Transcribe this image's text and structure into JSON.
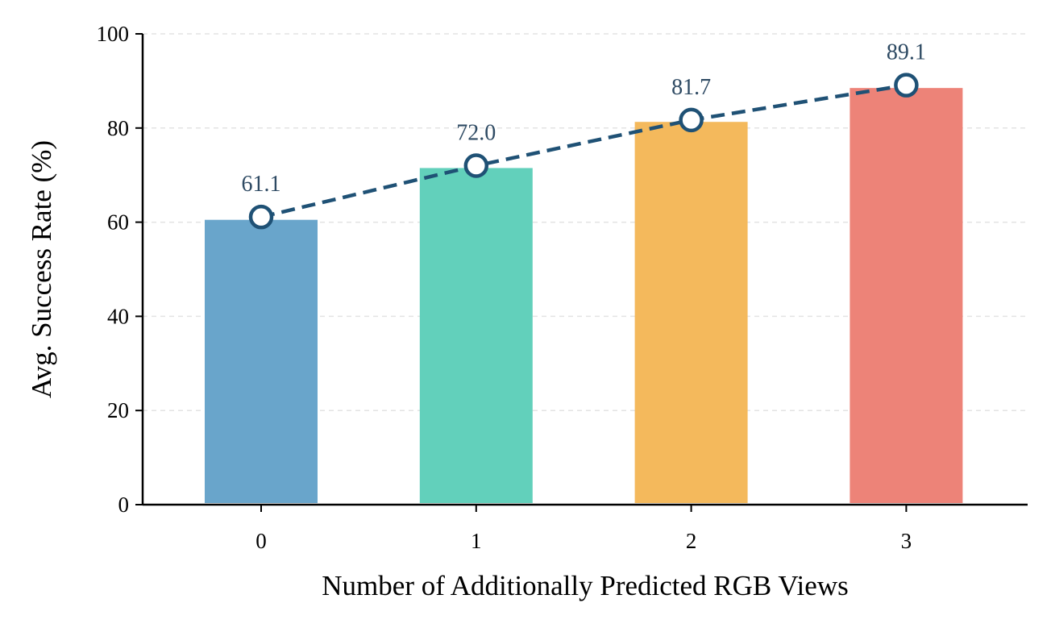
{
  "chart_data": {
    "type": "bar",
    "xlabel": "Number of Additionally Predicted RGB Views",
    "ylabel": "Avg. Success Rate (%)",
    "categories": [
      "0",
      "1",
      "2",
      "3"
    ],
    "values": [
      60.5,
      71.5,
      81.3,
      88.5
    ],
    "bar_colors": [
      "#69a5cb",
      "#62d0bb",
      "#f4b95c",
      "#ed8378"
    ],
    "line": {
      "style": "dashed",
      "color": "#1f5175",
      "marker": "hollow-circle",
      "values": [
        61.1,
        72.0,
        81.7,
        89.1
      ],
      "labels": [
        "61.1",
        "72.0",
        "81.7",
        "89.1"
      ]
    },
    "ylim": [
      0,
      100
    ],
    "yticks": [
      "0",
      "20",
      "40",
      "60",
      "80",
      "100"
    ],
    "grid": "horizontal-dashed"
  }
}
